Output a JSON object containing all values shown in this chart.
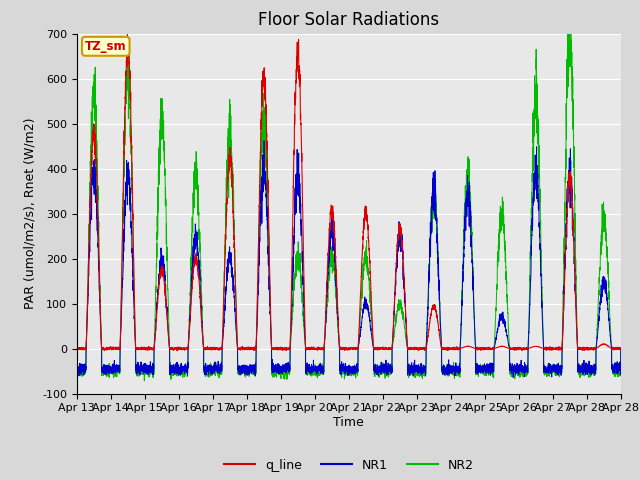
{
  "title": "Floor Solar Radiations",
  "xlabel": "Time",
  "ylabel": "PAR (umol/m2/s), Rnet (W/m2)",
  "ylim": [
    -100,
    700
  ],
  "yticks": [
    -100,
    0,
    100,
    200,
    300,
    400,
    500,
    600,
    700
  ],
  "fig_bg_color": "#d8d8d8",
  "plot_bg_color": "#e8e8e8",
  "line_colors": {
    "q_line": "#dd0000",
    "NR1": "#0000cc",
    "NR2": "#00bb00"
  },
  "annotation_text": "TZ_sm",
  "annotation_bg": "#ffffcc",
  "annotation_border": "#cc9900",
  "x_tick_labels": [
    "Apr 13",
    "Apr 14",
    "Apr 15",
    "Apr 16",
    "Apr 17",
    "Apr 18",
    "Apr 19",
    "Apr 20",
    "Apr 21",
    "Apr 22",
    "Apr 23",
    "Apr 24",
    "Apr 25",
    "Apr 26",
    "Apr 27",
    "Apr 28",
    "Apr 28"
  ],
  "num_days": 16,
  "points_per_day": 288,
  "title_fontsize": 12,
  "tick_fontsize": 8,
  "label_fontsize": 9
}
